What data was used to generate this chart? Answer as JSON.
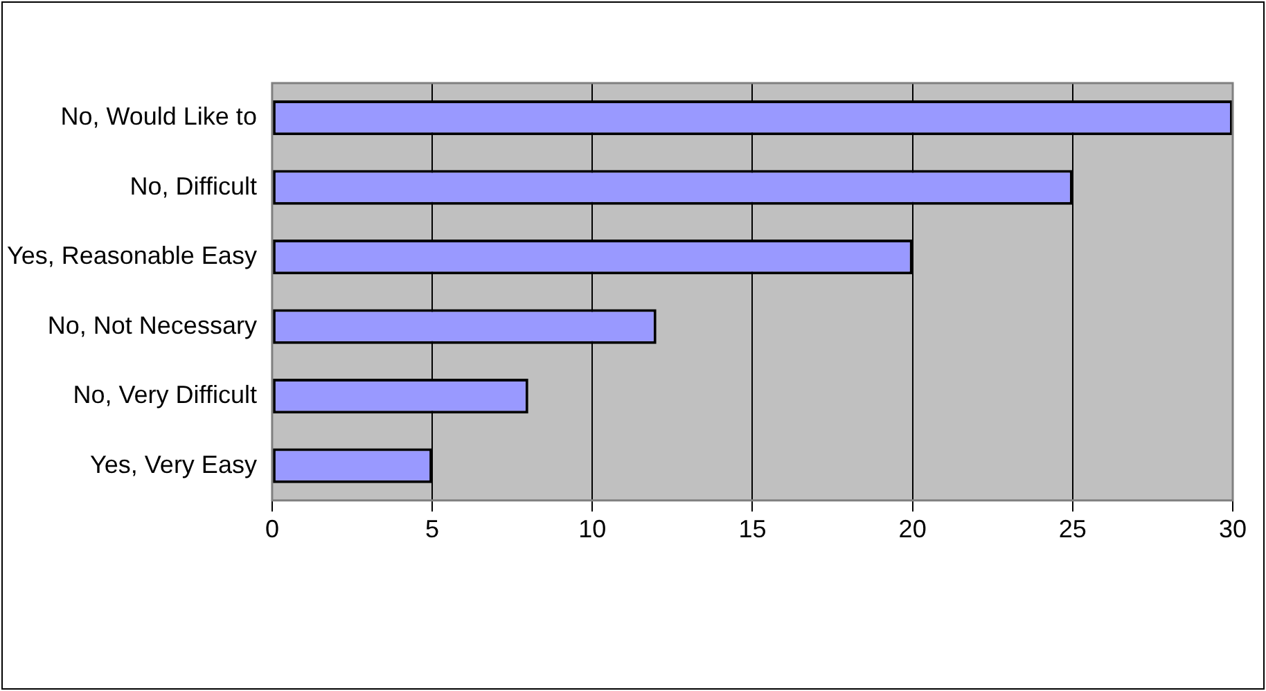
{
  "chart_data": {
    "type": "bar",
    "orientation": "horizontal",
    "categories": [
      "No, Would Like to",
      "No, Difficult",
      "Yes, Reasonable Easy",
      "No, Not Necessary",
      "No, Very Difficult",
      "Yes, Very Easy"
    ],
    "values": [
      30,
      25,
      20,
      12,
      8,
      5
    ],
    "color": "#9999ff",
    "xlim": [
      0,
      30
    ],
    "xticks": [
      0,
      5,
      10,
      15,
      20,
      25,
      30
    ],
    "grid": "x",
    "legend": false
  }
}
